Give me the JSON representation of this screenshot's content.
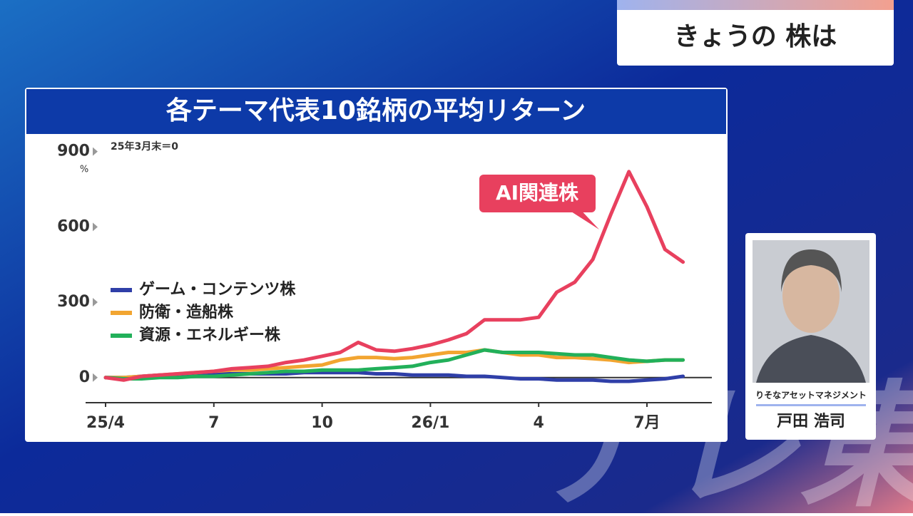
{
  "header": {
    "title": "きょうの 株は"
  },
  "watermark": "テレ東",
  "guest": {
    "company": "りそなアセットマネジメント",
    "name": "戸田 浩司"
  },
  "chart_data": {
    "type": "line",
    "title": "各テーマ代表10銘柄の平均リターン",
    "note": "25年3月末＝0",
    "y_unit": "%",
    "categories": [
      "25/4",
      null,
      null,
      null,
      null,
      null,
      "7",
      null,
      null,
      null,
      null,
      null,
      "10",
      null,
      null,
      null,
      null,
      null,
      "26/1",
      null,
      null,
      null,
      null,
      null,
      "4",
      null,
      null,
      null,
      null,
      null,
      "7月",
      null,
      null
    ],
    "ylim": [
      -100,
      950
    ],
    "yticks": [
      0,
      300,
      600,
      900
    ],
    "series": [
      {
        "name": "ゲーム・コンテンツ株",
        "color": "#2f3fa8",
        "values": [
          0,
          0,
          5,
          10,
          10,
          10,
          15,
          15,
          15,
          15,
          15,
          20,
          20,
          20,
          20,
          15,
          15,
          10,
          10,
          10,
          5,
          5,
          0,
          -5,
          -5,
          -10,
          -10,
          -10,
          -15,
          -15,
          -10,
          -5,
          5
        ]
      },
      {
        "name": "防衛・造船株",
        "color": "#f2a531",
        "values": [
          0,
          0,
          5,
          10,
          15,
          20,
          25,
          30,
          30,
          35,
          40,
          45,
          50,
          70,
          80,
          80,
          75,
          80,
          90,
          100,
          100,
          110,
          100,
          90,
          90,
          80,
          80,
          75,
          70,
          60,
          65,
          70,
          70
        ]
      },
      {
        "name": "資源・エネルギー株",
        "color": "#22b05a",
        "values": [
          0,
          -5,
          -5,
          0,
          0,
          5,
          5,
          10,
          15,
          20,
          25,
          25,
          30,
          30,
          30,
          35,
          40,
          45,
          60,
          70,
          90,
          110,
          100,
          100,
          100,
          95,
          90,
          90,
          80,
          70,
          65,
          70,
          70
        ]
      },
      {
        "name": "AI関連株",
        "color": "#e8405e",
        "values": [
          0,
          -10,
          5,
          10,
          15,
          20,
          25,
          35,
          40,
          45,
          60,
          70,
          85,
          100,
          140,
          110,
          105,
          115,
          130,
          150,
          175,
          230,
          230,
          230,
          240,
          340,
          380,
          470,
          650,
          820,
          680,
          510,
          460
        ]
      }
    ]
  }
}
